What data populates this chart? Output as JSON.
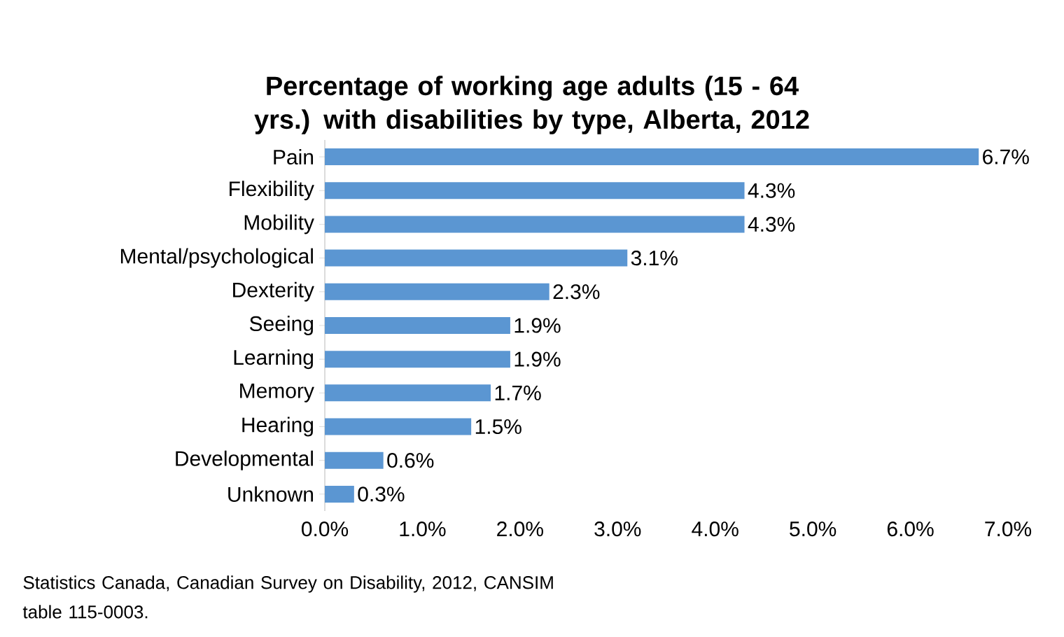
{
  "chart_data": {
    "type": "bar",
    "orientation": "horizontal",
    "title": "Percentage of working age adults (15 - 64 yrs.) with disabilities by type, Alberta, 2012",
    "categories": [
      "Pain",
      "Flexibility",
      "Mobility",
      "Mental/psychological",
      "Dexterity",
      "Seeing",
      "Learning",
      "Memory",
      "Hearing",
      "Developmental",
      "Unknown"
    ],
    "values": [
      6.7,
      4.3,
      4.3,
      3.1,
      2.3,
      1.9,
      1.9,
      1.7,
      1.5,
      0.6,
      0.3
    ],
    "value_labels": [
      "6.7%",
      "4.3%",
      "4.3%",
      "3.1%",
      "2.3%",
      "1.9%",
      "1.9%",
      "1.7%",
      "1.5%",
      "0.6%",
      "0.3%"
    ],
    "color": "#5b96d2",
    "xlim": [
      0,
      7
    ],
    "xticks": [
      {
        "value": 0,
        "label": "0.0%"
      },
      {
        "value": 1,
        "label": "1.0%"
      },
      {
        "value": 2,
        "label": "2.0%"
      },
      {
        "value": 3,
        "label": "3.0%"
      },
      {
        "value": 4,
        "label": "4.0%"
      },
      {
        "value": 5,
        "label": "5.0%"
      },
      {
        "value": 6,
        "label": "6.0%"
      },
      {
        "value": 7,
        "label": "7.0%"
      }
    ],
    "grid": false,
    "annotations": [
      "Statistics Canada, Canadian Survey on Disability, 2012, CANSIM table 115-0003."
    ]
  }
}
